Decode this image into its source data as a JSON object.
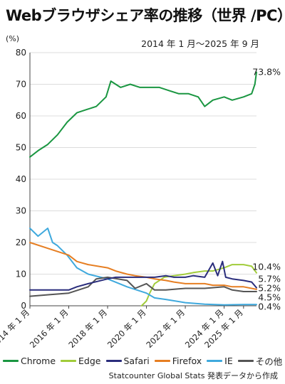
{
  "chart_data": {
    "type": "line",
    "title": "Webブラウザシェア率の推移（世界 /PC）",
    "subtitle": "2014 年 1 月～2025 年 9 月",
    "ylabel": "(%)",
    "ylim": [
      0,
      80
    ],
    "yticks": [
      "0",
      "10",
      "20",
      "30",
      "40",
      "50",
      "60",
      "70",
      "80"
    ],
    "x_range": [
      "2014-01",
      "2025-09"
    ],
    "x_ticks": [
      {
        "label": "2014 年 1 月",
        "date": "2014-01"
      },
      {
        "label": "2016 年 1 月",
        "date": "2016-01"
      },
      {
        "label": "2018 年 1 月",
        "date": "2018-01"
      },
      {
        "label": "2020 年 1 月",
        "date": "2020-01"
      },
      {
        "label": "2022 年 1 月",
        "date": "2022-01"
      },
      {
        "label": "2024 年 1 月",
        "date": "2024-01"
      },
      {
        "label": "2025 年 1 月",
        "date": "2025-01"
      }
    ],
    "grid": true,
    "series": [
      {
        "name": "Chrome",
        "color": "#1a9641",
        "end_label": "73.8%",
        "points": [
          [
            "2014-01",
            47
          ],
          [
            "2014-06",
            49
          ],
          [
            "2014-12",
            51
          ],
          [
            "2015-06",
            54
          ],
          [
            "2015-12",
            58
          ],
          [
            "2016-06",
            61
          ],
          [
            "2016-12",
            62
          ],
          [
            "2017-06",
            63
          ],
          [
            "2017-12",
            66
          ],
          [
            "2018-03",
            71
          ],
          [
            "2018-09",
            69
          ],
          [
            "2019-03",
            70
          ],
          [
            "2019-09",
            69
          ],
          [
            "2020-03",
            69
          ],
          [
            "2020-09",
            69
          ],
          [
            "2021-03",
            68
          ],
          [
            "2021-09",
            67
          ],
          [
            "2022-03",
            67
          ],
          [
            "2022-09",
            66
          ],
          [
            "2023-01",
            63
          ],
          [
            "2023-06",
            65
          ],
          [
            "2024-01",
            66
          ],
          [
            "2024-06",
            65
          ],
          [
            "2025-01",
            66
          ],
          [
            "2025-06",
            67
          ],
          [
            "2025-08",
            70
          ],
          [
            "2025-09",
            73.8
          ]
        ]
      },
      {
        "name": "Edge",
        "color": "#a1cc3a",
        "end_label": "10.4%",
        "points": [
          [
            "2019-10",
            0
          ],
          [
            "2020-01",
            1.5
          ],
          [
            "2020-03",
            4
          ],
          [
            "2020-06",
            7
          ],
          [
            "2020-12",
            9
          ],
          [
            "2021-06",
            9.5
          ],
          [
            "2022-01",
            10
          ],
          [
            "2022-06",
            10.5
          ],
          [
            "2023-01",
            11
          ],
          [
            "2023-06",
            11
          ],
          [
            "2024-01",
            12
          ],
          [
            "2024-06",
            13
          ],
          [
            "2025-01",
            13
          ],
          [
            "2025-06",
            12.5
          ],
          [
            "2025-09",
            10.4
          ]
        ]
      },
      {
        "name": "Safari",
        "color": "#2a2d7c",
        "end_label": "5.7%",
        "points": [
          [
            "2014-01",
            5
          ],
          [
            "2015-01",
            5
          ],
          [
            "2016-01",
            5
          ],
          [
            "2016-06",
            6
          ],
          [
            "2017-01",
            7
          ],
          [
            "2018-01",
            8.5
          ],
          [
            "2018-06",
            9
          ],
          [
            "2019-01",
            9
          ],
          [
            "2019-06",
            9
          ],
          [
            "2020-01",
            9
          ],
          [
            "2020-06",
            9
          ],
          [
            "2021-01",
            9.5
          ],
          [
            "2021-06",
            9
          ],
          [
            "2022-01",
            9
          ],
          [
            "2022-06",
            9.5
          ],
          [
            "2023-01",
            9
          ],
          [
            "2023-06",
            13.5
          ],
          [
            "2023-09",
            9.5
          ],
          [
            "2023-12",
            14
          ],
          [
            "2024-02",
            9
          ],
          [
            "2024-06",
            8.5
          ],
          [
            "2025-01",
            8
          ],
          [
            "2025-06",
            7.5
          ],
          [
            "2025-09",
            5.7
          ]
        ]
      },
      {
        "name": "Firefox",
        "color": "#e67e22",
        "end_label": "5.2%",
        "points": [
          [
            "2014-01",
            20
          ],
          [
            "2015-01",
            18
          ],
          [
            "2016-01",
            16
          ],
          [
            "2016-06",
            14
          ],
          [
            "2017-01",
            13
          ],
          [
            "2018-01",
            12
          ],
          [
            "2018-06",
            11
          ],
          [
            "2019-01",
            10
          ],
          [
            "2019-06",
            9.5
          ],
          [
            "2020-01",
            9
          ],
          [
            "2020-06",
            8.5
          ],
          [
            "2021-01",
            8
          ],
          [
            "2021-06",
            7.5
          ],
          [
            "2022-01",
            7
          ],
          [
            "2022-06",
            7
          ],
          [
            "2023-01",
            7
          ],
          [
            "2023-06",
            6.5
          ],
          [
            "2024-01",
            6.5
          ],
          [
            "2024-06",
            6
          ],
          [
            "2025-01",
            6
          ],
          [
            "2025-09",
            5.2
          ]
        ]
      },
      {
        "name": "IE",
        "color": "#3fa9dd",
        "end_label": "0.4%",
        "points": [
          [
            "2014-01",
            24.5
          ],
          [
            "2014-06",
            22
          ],
          [
            "2014-12",
            24.5
          ],
          [
            "2015-03",
            20
          ],
          [
            "2015-06",
            19
          ],
          [
            "2015-12",
            16
          ],
          [
            "2016-06",
            12
          ],
          [
            "2017-01",
            10
          ],
          [
            "2018-01",
            8.5
          ],
          [
            "2019-01",
            6
          ],
          [
            "2020-01",
            4
          ],
          [
            "2020-06",
            2.5
          ],
          [
            "2021-01",
            2
          ],
          [
            "2022-01",
            1
          ],
          [
            "2023-01",
            0.5
          ],
          [
            "2024-01",
            0.3
          ],
          [
            "2025-01",
            0.4
          ],
          [
            "2025-09",
            0.4
          ]
        ]
      },
      {
        "name": "その他",
        "color": "#555555",
        "end_label": "4.5%",
        "points": [
          [
            "2014-01",
            3
          ],
          [
            "2015-01",
            3.5
          ],
          [
            "2016-01",
            4
          ],
          [
            "2017-01",
            6
          ],
          [
            "2017-06",
            8.5
          ],
          [
            "2018-01",
            9
          ],
          [
            "2019-01",
            8
          ],
          [
            "2019-06",
            5.5
          ],
          [
            "2020-01",
            7
          ],
          [
            "2020-06",
            5
          ],
          [
            "2021-01",
            5
          ],
          [
            "2022-01",
            5.5
          ],
          [
            "2023-01",
            5.5
          ],
          [
            "2024-01",
            6
          ],
          [
            "2024-06",
            5
          ],
          [
            "2025-01",
            4.5
          ],
          [
            "2025-09",
            4.5
          ]
        ]
      }
    ],
    "end_label_order": [
      "Chrome",
      "Edge",
      "Safari",
      "Firefox",
      "その他",
      "IE"
    ],
    "source": "Statcounter Global Stats 発表データから作成"
  }
}
